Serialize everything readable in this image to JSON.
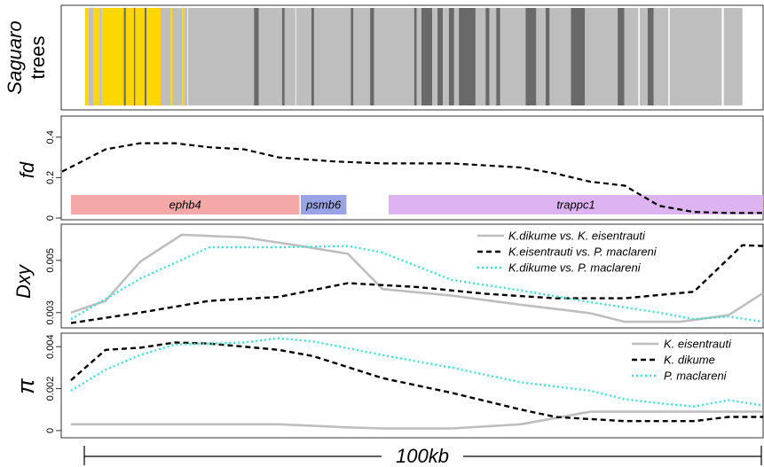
{
  "panels": {
    "trees": {
      "ylabel_line1": "Saguaro",
      "ylabel_line2": "trees",
      "colors": {
        "yellow": "#FFD700",
        "light": "#BEBEBE",
        "dark": "#696969"
      },
      "segments": [
        [
          "yellow",
          0.0,
          0.005
        ],
        [
          "light",
          0.005,
          0.012
        ],
        [
          "yellow",
          0.012,
          0.021
        ],
        [
          "light",
          0.021,
          0.025
        ],
        [
          "yellow",
          0.025,
          0.058
        ],
        [
          "dark",
          0.058,
          0.061
        ],
        [
          "yellow",
          0.061,
          0.073
        ],
        [
          "dark",
          0.073,
          0.075
        ],
        [
          "yellow",
          0.075,
          0.089
        ],
        [
          "dark",
          0.089,
          0.092
        ],
        [
          "yellow",
          0.092,
          0.113
        ],
        [
          "light",
          0.113,
          0.128
        ],
        [
          "yellow",
          0.128,
          0.131
        ],
        [
          "light",
          0.131,
          0.145
        ],
        [
          "yellow",
          0.145,
          0.148
        ],
        [
          "light",
          0.148,
          0.153
        ],
        [
          "light",
          0.154,
          0.253
        ],
        [
          "dark",
          0.253,
          0.26
        ],
        [
          "light",
          0.26,
          0.295
        ],
        [
          "dark",
          0.295,
          0.299
        ],
        [
          "light",
          0.299,
          0.315
        ],
        [
          "light",
          0.316,
          0.339
        ],
        [
          "dark",
          0.339,
          0.343
        ],
        [
          "light",
          0.343,
          0.398
        ],
        [
          "dark",
          0.398,
          0.402
        ],
        [
          "light",
          0.402,
          0.427
        ],
        [
          "dark",
          0.427,
          0.433
        ],
        [
          "light",
          0.433,
          0.493
        ],
        [
          "dark",
          0.493,
          0.497
        ],
        [
          "light",
          0.497,
          0.504
        ],
        [
          "dark",
          0.504,
          0.52
        ],
        [
          "light",
          0.52,
          0.528
        ],
        [
          "dark",
          0.528,
          0.536
        ],
        [
          "light",
          0.536,
          0.545
        ],
        [
          "dark",
          0.545,
          0.553
        ],
        [
          "light",
          0.553,
          0.56
        ],
        [
          "dark",
          0.56,
          0.585
        ],
        [
          "light",
          0.585,
          0.6
        ],
        [
          "dark",
          0.6,
          0.606
        ],
        [
          "light",
          0.606,
          0.616
        ],
        [
          "dark",
          0.616,
          0.622
        ],
        [
          "light",
          0.622,
          0.66
        ],
        [
          "dark",
          0.66,
          0.676
        ],
        [
          "light",
          0.676,
          0.69
        ],
        [
          "dark",
          0.69,
          0.696
        ],
        [
          "light",
          0.696,
          0.728
        ],
        [
          "dark",
          0.728,
          0.749
        ],
        [
          "light",
          0.749,
          0.798
        ],
        [
          "dark",
          0.798,
          0.808
        ],
        [
          "light",
          0.808,
          0.829
        ],
        [
          "light",
          0.831,
          0.843
        ],
        [
          "dark",
          0.843,
          0.852
        ],
        [
          "light",
          0.852,
          0.874
        ],
        [
          "light",
          0.876,
          0.954
        ],
        [
          "light",
          0.957,
          0.985
        ]
      ]
    },
    "fd": {
      "ylabel": "fd",
      "ylim": [
        0,
        0.5
      ],
      "ticks": [
        {
          "v": 0,
          "label": "0"
        },
        {
          "v": 0.2,
          "label": "0.2"
        },
        {
          "v": 0.4,
          "label": "0.4"
        }
      ],
      "genes": [
        {
          "name": "ephb4",
          "x0": 0.0,
          "x1": 0.33,
          "color": "#F4A8A8"
        },
        {
          "name": "psmb6",
          "x0": 0.332,
          "x1": 0.398,
          "color": "#9AA3E4"
        },
        {
          "name": "trappc1",
          "x0": 0.459,
          "x1": 1.0,
          "color": "#DDB3F2"
        }
      ]
    },
    "dxy": {
      "ylabel": "Dxy",
      "ylim": [
        0.00245,
        0.00635
      ],
      "ticks": [
        {
          "v": 0.003,
          "label": "0.003"
        },
        {
          "v": 0.005,
          "label": "0.005"
        }
      ],
      "legend": [
        "K.dikume vs. K. eisentrauti",
        "K.eisentrauti vs. P. maclareni",
        "K.dikume vs. P. maclareni"
      ]
    },
    "pi": {
      "ylabel": "π",
      "ylim": [
        -0.0003,
        0.0046
      ],
      "ticks": [
        {
          "v": 0,
          "label": "0"
        },
        {
          "v": 0.002,
          "label": "0.002"
        },
        {
          "v": 0.004,
          "label": "0.004"
        }
      ],
      "legend": [
        "K. eisentrauti",
        "K. dikume",
        "P. maclareni"
      ]
    }
  },
  "scale_bar": {
    "label": "100kb"
  },
  "chart_data": [
    {
      "type": "line",
      "ylabel": "fd",
      "x_range": [
        0,
        1
      ],
      "series": [
        {
          "style": "dashed-black",
          "x": [
            -0.02,
            0.05,
            0.1,
            0.15,
            0.2,
            0.25,
            0.3,
            0.38,
            0.45,
            0.5,
            0.55,
            0.6,
            0.65,
            0.7,
            0.75,
            0.8,
            0.85,
            0.9,
            0.95,
            1.0
          ],
          "y": [
            0.23,
            0.34,
            0.37,
            0.37,
            0.35,
            0.34,
            0.3,
            0.28,
            0.27,
            0.27,
            0.27,
            0.26,
            0.25,
            0.22,
            0.18,
            0.16,
            0.06,
            0.03,
            0.025,
            0.025
          ]
        }
      ]
    },
    {
      "type": "line",
      "ylabel": "Dxy",
      "x_range": [
        0,
        1
      ],
      "series": [
        {
          "name": "K.dikume vs. K. eisentrauti",
          "color": "#BEBEBE",
          "x": [
            0,
            0.05,
            0.1,
            0.16,
            0.25,
            0.32,
            0.4,
            0.45,
            0.55,
            0.65,
            0.75,
            0.8,
            0.88,
            0.95,
            1.0
          ],
          "y": [
            0.003,
            0.00345,
            0.00495,
            0.00598,
            0.00588,
            0.0056,
            0.00525,
            0.0039,
            0.00365,
            0.0033,
            0.00298,
            0.00265,
            0.00265,
            0.0029,
            0.00375
          ]
        },
        {
          "name": "K.eisentrauti vs. P. maclareni",
          "color": "#000000",
          "x": [
            0,
            0.1,
            0.2,
            0.3,
            0.4,
            0.5,
            0.6,
            0.7,
            0.8,
            0.9,
            0.97,
            1.0
          ],
          "y": [
            0.0026,
            0.003,
            0.00345,
            0.0036,
            0.00413,
            0.00398,
            0.00372,
            0.00355,
            0.00355,
            0.0038,
            0.00558,
            0.00555
          ]
        },
        {
          "name": "K.dikume vs. P. maclareni",
          "color": "#40E0D0",
          "x": [
            0,
            0.1,
            0.2,
            0.3,
            0.4,
            0.45,
            0.55,
            0.65,
            0.75,
            0.8,
            0.85,
            0.9,
            0.95,
            1.0
          ],
          "y": [
            0.00275,
            0.0043,
            0.0055,
            0.0055,
            0.00555,
            0.0053,
            0.00425,
            0.00385,
            0.0034,
            0.0032,
            0.003,
            0.00275,
            0.00285,
            0.00265
          ]
        }
      ]
    },
    {
      "type": "line",
      "ylabel": "π",
      "x_range": [
        0,
        1
      ],
      "series": [
        {
          "name": "K. eisentrauti",
          "color": "#BEBEBE",
          "x": [
            0,
            0.1,
            0.2,
            0.3,
            0.4,
            0.45,
            0.55,
            0.65,
            0.75,
            0.8,
            0.9,
            1.0
          ],
          "y": [
            0.0003,
            0.0003,
            0.0003,
            0.0003,
            0.00015,
            0.0001,
            0.0001,
            0.0003,
            0.0009,
            0.0009,
            0.0009,
            0.0009
          ]
        },
        {
          "name": "K. dikume",
          "color": "#000000",
          "x": [
            0,
            0.05,
            0.1,
            0.15,
            0.2,
            0.25,
            0.3,
            0.35,
            0.45,
            0.55,
            0.65,
            0.7,
            0.75,
            0.8,
            0.85,
            0.9,
            0.95,
            1.0
          ],
          "y": [
            0.0024,
            0.00385,
            0.00395,
            0.0042,
            0.00415,
            0.004,
            0.00385,
            0.00355,
            0.0025,
            0.0018,
            0.001,
            0.00065,
            0.00055,
            0.00045,
            0.00045,
            0.00045,
            0.00065,
            0.00065
          ]
        },
        {
          "name": "P. maclareni",
          "color": "#40E0D0",
          "x": [
            0,
            0.05,
            0.1,
            0.15,
            0.2,
            0.25,
            0.3,
            0.35,
            0.45,
            0.55,
            0.65,
            0.7,
            0.75,
            0.8,
            0.85,
            0.9,
            0.95,
            1.0
          ],
          "y": [
            0.0019,
            0.0029,
            0.0036,
            0.0041,
            0.00415,
            0.0042,
            0.0044,
            0.00425,
            0.0036,
            0.003,
            0.0023,
            0.0021,
            0.0019,
            0.0015,
            0.0013,
            0.00115,
            0.00145,
            0.0012
          ]
        }
      ]
    }
  ]
}
